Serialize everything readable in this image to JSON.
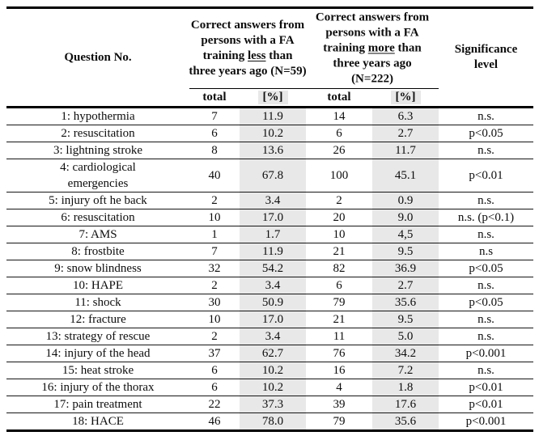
{
  "table": {
    "header": {
      "question_col": "Question No.",
      "group_lt3": {
        "prefix": "Correct answers from\npersons with a FA\ntraining ",
        "underlined": "less",
        "suffix": " than\nthree years ago (N=59)"
      },
      "group_gt3": {
        "prefix": "Correct answers from\npersons with a FA\ntraining ",
        "underlined": "more",
        "suffix": " than\nthree years ago\n(N=222)"
      },
      "significance_col": "Significance\nlevel",
      "subheader": {
        "total_lt3": "total",
        "pct_lt3": "[%]",
        "total_gt3": "total",
        "pct_gt3": "[%]"
      }
    },
    "rows": [
      {
        "question": "1: hypothermia",
        "total_lt3": "7",
        "pct_lt3": "11.9",
        "total_gt3": "14",
        "pct_gt3": "6.3",
        "significance": "n.s."
      },
      {
        "question": "2: resuscitation",
        "total_lt3": "6",
        "pct_lt3": "10.2",
        "total_gt3": "6",
        "pct_gt3": "2.7",
        "significance": "p<0.05"
      },
      {
        "question": "3: lightning stroke",
        "total_lt3": "8",
        "pct_lt3": "13.6",
        "total_gt3": "26",
        "pct_gt3": "11.7",
        "significance": "n.s."
      },
      {
        "question": "4: cardiological\nemergencies",
        "total_lt3": "40",
        "pct_lt3": "67.8",
        "total_gt3": "100",
        "pct_gt3": "45.1",
        "significance": "p<0.01"
      },
      {
        "question": "5: injury oft he back",
        "total_lt3": "2",
        "pct_lt3": "3.4",
        "total_gt3": "2",
        "pct_gt3": "0.9",
        "significance": "n.s."
      },
      {
        "question": "6: resuscitation",
        "total_lt3": "10",
        "pct_lt3": "17.0",
        "total_gt3": "20",
        "pct_gt3": "9.0",
        "significance": "n.s. (p<0.1)"
      },
      {
        "question": "7: AMS",
        "total_lt3": "1",
        "pct_lt3": "1.7",
        "total_gt3": "10",
        "pct_gt3": "4,5",
        "significance": "n.s."
      },
      {
        "question": "8: frostbite",
        "total_lt3": "7",
        "pct_lt3": "11.9",
        "total_gt3": "21",
        "pct_gt3": "9.5",
        "significance": "n.s"
      },
      {
        "question": "9: snow blindness",
        "total_lt3": "32",
        "pct_lt3": "54.2",
        "total_gt3": "82",
        "pct_gt3": "36.9",
        "significance": "p<0.05"
      },
      {
        "question": "10: HAPE",
        "total_lt3": "2",
        "pct_lt3": "3.4",
        "total_gt3": "6",
        "pct_gt3": "2.7",
        "significance": "n.s."
      },
      {
        "question": "11: shock",
        "total_lt3": "30",
        "pct_lt3": "50.9",
        "total_gt3": "79",
        "pct_gt3": "35.6",
        "significance": "p<0.05"
      },
      {
        "question": "12: fracture",
        "total_lt3": "10",
        "pct_lt3": "17.0",
        "total_gt3": "21",
        "pct_gt3": "9.5",
        "significance": "n.s."
      },
      {
        "question": "13: strategy of rescue",
        "total_lt3": "2",
        "pct_lt3": "3.4",
        "total_gt3": "11",
        "pct_gt3": "5.0",
        "significance": "n.s."
      },
      {
        "question": "14: injury of the head",
        "total_lt3": "37",
        "pct_lt3": "62.7",
        "total_gt3": "76",
        "pct_gt3": "34.2",
        "significance": "p<0.001"
      },
      {
        "question": "15: heat stroke",
        "total_lt3": "6",
        "pct_lt3": "10.2",
        "total_gt3": "16",
        "pct_gt3": "7.2",
        "significance": "n.s."
      },
      {
        "question": "16: injury of the thorax",
        "total_lt3": "6",
        "pct_lt3": "10.2",
        "total_gt3": "4",
        "pct_gt3": "1.8",
        "significance": "p<0.01"
      },
      {
        "question": "17: pain treatment",
        "total_lt3": "22",
        "pct_lt3": "37.3",
        "total_gt3": "39",
        "pct_gt3": "17.6",
        "significance": "p<0.01"
      },
      {
        "question": "18: HACE",
        "total_lt3": "46",
        "pct_lt3": "78.0",
        "total_gt3": "79",
        "pct_gt3": "35.6",
        "significance": "p<0.001"
      }
    ],
    "colors": {
      "shading": "#e8e8e8",
      "rule": "#000000",
      "text": "#0d0d0d"
    }
  },
  "chart_data": {
    "type": "table",
    "columns": [
      "Question No.",
      "total (FA training less than three years ago, N=59)",
      "[%] (FA training less than three years ago, N=59)",
      "total (FA training more than three years ago, N=222)",
      "[%] (FA training more than three years ago, N=222)",
      "Significance level"
    ],
    "rows": [
      [
        "1: hypothermia",
        "7",
        "11.9",
        "14",
        "6.3",
        "n.s."
      ],
      [
        "2: resuscitation",
        "6",
        "10.2",
        "6",
        "2.7",
        "p<0.05"
      ],
      [
        "3: lightning stroke",
        "8",
        "13.6",
        "26",
        "11.7",
        "n.s."
      ],
      [
        "4: cardiological emergencies",
        "40",
        "67.8",
        "100",
        "45.1",
        "p<0.01"
      ],
      [
        "5: injury oft he back",
        "2",
        "3.4",
        "2",
        "0.9",
        "n.s."
      ],
      [
        "6: resuscitation",
        "10",
        "17.0",
        "20",
        "9.0",
        "n.s. (p<0.1)"
      ],
      [
        "7: AMS",
        "1",
        "1.7",
        "10",
        "4,5",
        "n.s."
      ],
      [
        "8: frostbite",
        "7",
        "11.9",
        "21",
        "9.5",
        "n.s"
      ],
      [
        "9: snow blindness",
        "32",
        "54.2",
        "82",
        "36.9",
        "p<0.05"
      ],
      [
        "10: HAPE",
        "2",
        "3.4",
        "6",
        "2.7",
        "n.s."
      ],
      [
        "11: shock",
        "30",
        "50.9",
        "79",
        "35.6",
        "p<0.05"
      ],
      [
        "12: fracture",
        "10",
        "17.0",
        "21",
        "9.5",
        "n.s."
      ],
      [
        "13: strategy of rescue",
        "2",
        "3.4",
        "11",
        "5.0",
        "n.s."
      ],
      [
        "14: injury of the head",
        "37",
        "62.7",
        "76",
        "34.2",
        "p<0.001"
      ],
      [
        "15: heat stroke",
        "6",
        "10.2",
        "16",
        "7.2",
        "n.s."
      ],
      [
        "16: injury of the thorax",
        "6",
        "10.2",
        "4",
        "1.8",
        "p<0.01"
      ],
      [
        "17: pain treatment",
        "22",
        "37.3",
        "39",
        "17.6",
        "p<0.01"
      ],
      [
        "18: HACE",
        "46",
        "78.0",
        "79",
        "35.6",
        "p<0.001"
      ]
    ]
  }
}
